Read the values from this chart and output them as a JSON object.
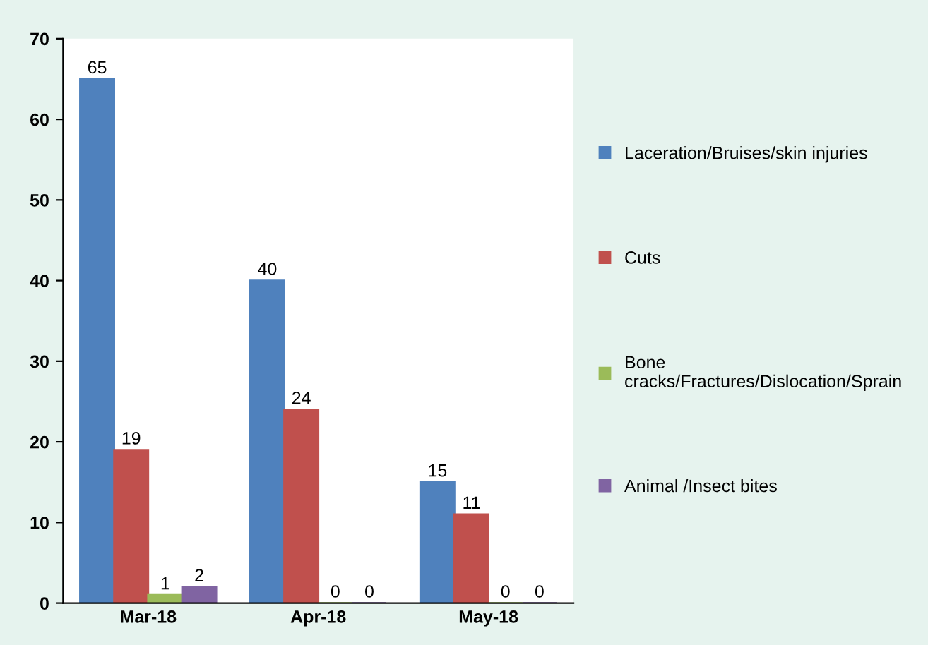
{
  "chart_data": {
    "type": "bar",
    "categories": [
      "Mar-18",
      "Apr-18",
      "May-18"
    ],
    "series": [
      {
        "name": "Laceration/Bruises/skin injuries",
        "color": "#4f81bd",
        "values": [
          65,
          40,
          15
        ]
      },
      {
        "name": "Cuts",
        "color": "#c0504d",
        "values": [
          19,
          24,
          11
        ]
      },
      {
        "name": "Bone cracks/Fractures/Dislocation/Sprain",
        "color": "#9bbb59",
        "values": [
          1,
          0,
          0
        ]
      },
      {
        "name": "Animal /Insect bites",
        "color": "#8064a2",
        "values": [
          2,
          0,
          0
        ]
      }
    ],
    "ylim": [
      0,
      70
    ],
    "yticks": [
      0,
      10,
      20,
      30,
      40,
      50,
      60,
      70
    ],
    "grid": false,
    "legend": "right",
    "data_labels": true
  }
}
